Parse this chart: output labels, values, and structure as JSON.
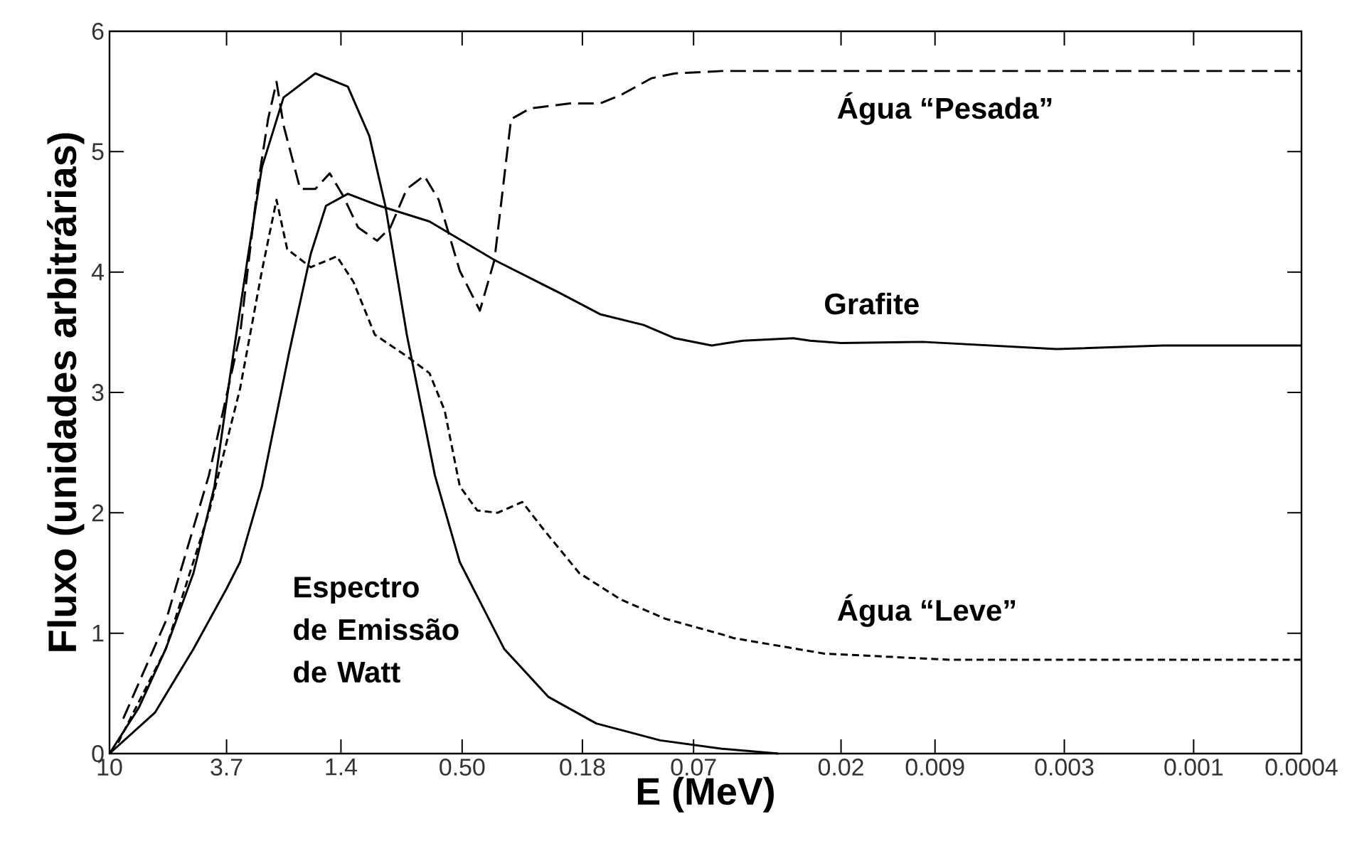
{
  "chart_data": {
    "type": "line",
    "xlabel": "E (MeV)",
    "ylabel": "Fluxo (unidades arbitrárias)",
    "log": "x",
    "xlim": [
      10,
      0.0004
    ],
    "ylim": [
      0,
      6
    ],
    "xticks": [
      10,
      3.7,
      1.4,
      {
        "value": 0.5,
        "label": "0.50"
      },
      0.18,
      0.07,
      0.02,
      0.009,
      0.003,
      0.001,
      0.0004
    ],
    "yticks": [
      0,
      1,
      2,
      3,
      4,
      5,
      6
    ],
    "grid": false,
    "marker": "none",
    "series": [
      {
        "name": "Água “Pesada”",
        "color": "#000000",
        "line_style": "dashed",
        "x": [
          8.9,
          6.2,
          4.3,
          3.3,
          2.85,
          2.6,
          2.42,
          2.28,
          1.98,
          1.74,
          1.54,
          1.38,
          1.21,
          1.03,
          0.92,
          0.8,
          0.69,
          0.61,
          0.51,
          0.43,
          0.38,
          0.33,
          0.28,
          0.2,
          0.155,
          0.13,
          0.1,
          0.082,
          0.055,
          0.02,
          0.0004
        ],
        "values": [
          0.29,
          1.1,
          2.31,
          3.48,
          4.69,
          5.27,
          5.58,
          5.22,
          4.69,
          4.69,
          4.82,
          4.64,
          4.37,
          4.26,
          4.37,
          4.69,
          4.8,
          4.6,
          4.01,
          3.68,
          4.1,
          5.27,
          5.36,
          5.4,
          5.4,
          5.47,
          5.61,
          5.65,
          5.67,
          5.67,
          5.67
        ]
      },
      {
        "name": "Grafite",
        "color": "#000000",
        "line_style": "solid",
        "x": [
          10,
          6.8,
          4.9,
          3.7,
          3.3,
          2.74,
          2.17,
          1.81,
          1.59,
          1.32,
          1.01,
          0.66,
          0.38,
          0.22,
          0.155,
          0.107,
          0.082,
          0.06,
          0.046,
          0.03,
          0.026,
          0.02,
          0.01,
          0.0032,
          0.0013,
          0.0004
        ],
        "values": [
          0,
          0.34,
          0.87,
          1.37,
          1.59,
          2.22,
          3.34,
          4.15,
          4.55,
          4.65,
          4.55,
          4.42,
          4.1,
          3.83,
          3.65,
          3.56,
          3.45,
          3.39,
          3.43,
          3.45,
          3.43,
          3.41,
          3.42,
          3.36,
          3.39,
          3.39
        ]
      },
      {
        "name": "Água “Leve”",
        "color": "#000000",
        "line_style": "dashed",
        "x": [
          9.3,
          6.2,
          4.3,
          3.3,
          2.74,
          2.42,
          2.21,
          1.81,
          1.45,
          1.26,
          1.05,
          0.8,
          0.66,
          0.58,
          0.51,
          0.44,
          0.37,
          0.3,
          0.25,
          0.185,
          0.13,
          0.089,
          0.055,
          0.05,
          0.023,
          0.008,
          0.0032,
          0.0004
        ],
        "values": [
          0.09,
          0.87,
          2.0,
          3.03,
          4.01,
          4.6,
          4.19,
          4.04,
          4.13,
          3.92,
          3.48,
          3.3,
          3.16,
          2.85,
          2.22,
          2.02,
          2.0,
          2.09,
          1.86,
          1.5,
          1.28,
          1.12,
          0.99,
          0.96,
          0.83,
          0.78,
          0.78,
          0.78
        ]
      },
      {
        "name": "Espectro de Emissão de Watt",
        "color": "#000000",
        "line_style": "solid",
        "x": [
          10,
          7.8,
          6.2,
          4.9,
          4.1,
          3.6,
          3.1,
          2.74,
          2.28,
          1.74,
          1.32,
          1.1,
          0.96,
          0.8,
          0.63,
          0.51,
          0.35,
          0.24,
          0.16,
          0.093,
          0.055,
          0.034
        ],
        "values": [
          0,
          0.38,
          0.87,
          1.5,
          2.22,
          3.12,
          4.1,
          4.87,
          5.45,
          5.65,
          5.54,
          5.13,
          4.55,
          3.48,
          2.31,
          1.59,
          0.87,
          0.47,
          0.25,
          0.11,
          0.04,
          0
        ]
      }
    ]
  }
}
